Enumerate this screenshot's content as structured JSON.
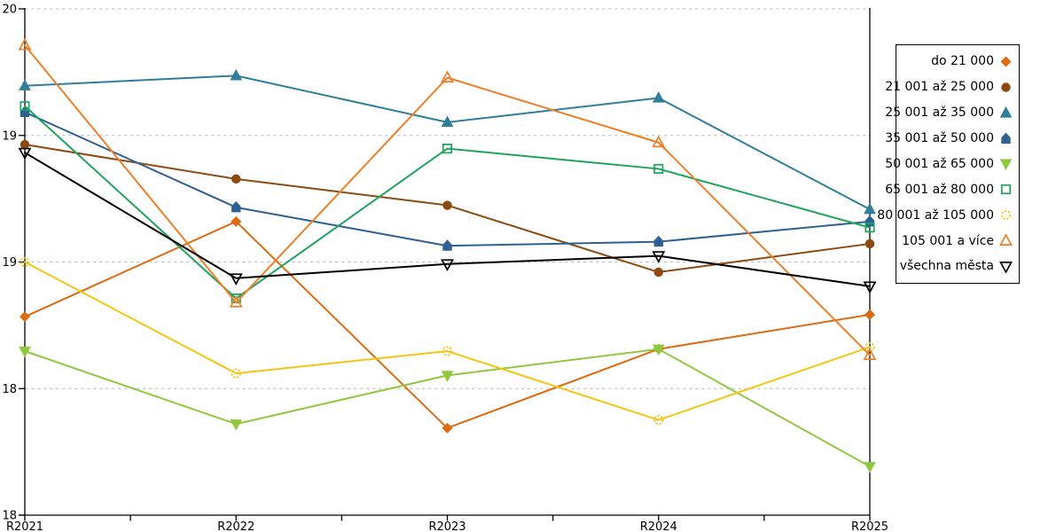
{
  "chart_data": {
    "type": "line",
    "title": "",
    "xlabel": "",
    "ylabel": "",
    "legend_position": "right",
    "grid": "horizontal-dashed",
    "categories": [
      "R2021",
      "R2022",
      "R2023",
      "R2024",
      "R2025"
    ],
    "y_axis": {
      "min": 17.5,
      "max": 20,
      "ticks": [
        {
          "value": 20,
          "label": "20",
          "grid": true
        },
        {
          "value": 19.375,
          "label": "19",
          "grid": true
        },
        {
          "value": 18.75,
          "label": "19",
          "grid": true
        },
        {
          "value": 18.125,
          "label": "18",
          "grid": true
        },
        {
          "value": 17.5,
          "label": "18",
          "grid": false
        }
      ]
    },
    "colors": {
      "gridline": "#BDBDBD",
      "axis": "#000000"
    },
    "series": [
      {
        "name": "do 21 000",
        "color": "#DC6B11",
        "marker": "diamond",
        "filled": true,
        "values": [
          18.48,
          18.95,
          17.93,
          18.32,
          18.49
        ]
      },
      {
        "name": "21 001 až 25 000",
        "color": "#8C4A10",
        "marker": "circle",
        "filled": true,
        "values": [
          19.33,
          19.16,
          19.03,
          18.7,
          18.84
        ]
      },
      {
        "name": "25 001 až 35 000",
        "color": "#2F7E9B",
        "marker": "triangle-up",
        "filled": true,
        "values": [
          19.62,
          19.67,
          19.44,
          19.56,
          19.01
        ]
      },
      {
        "name": "35 001 až 50 000",
        "color": "#2E6093",
        "marker": "pentagon",
        "filled": true,
        "values": [
          19.49,
          19.02,
          18.83,
          18.85,
          18.95
        ]
      },
      {
        "name": "50 001 až 65 000",
        "color": "#90C840",
        "marker": "triangle-down",
        "filled": true,
        "values": [
          18.31,
          17.95,
          18.19,
          18.32,
          17.74
        ]
      },
      {
        "name": "65 001 až 80 000",
        "color": "#1EA45C",
        "marker": "square",
        "filled": false,
        "values": [
          19.52,
          18.57,
          19.31,
          19.21,
          18.92
        ]
      },
      {
        "name": "80 001 až 105 000",
        "color": "#F5C513",
        "marker": "circle",
        "filled": false,
        "dashed_outline": true,
        "values": [
          18.75,
          18.2,
          18.31,
          17.97,
          18.33
        ]
      },
      {
        "name": "105 001 a více",
        "color": "#F07E26",
        "marker": "triangle-up",
        "filled": false,
        "values": [
          19.82,
          18.55,
          19.66,
          19.34,
          18.29
        ]
      },
      {
        "name": "všechna města",
        "color": "#000000",
        "marker": "triangle-down",
        "filled": false,
        "values": [
          19.29,
          18.67,
          18.74,
          18.78,
          18.63
        ]
      }
    ]
  }
}
